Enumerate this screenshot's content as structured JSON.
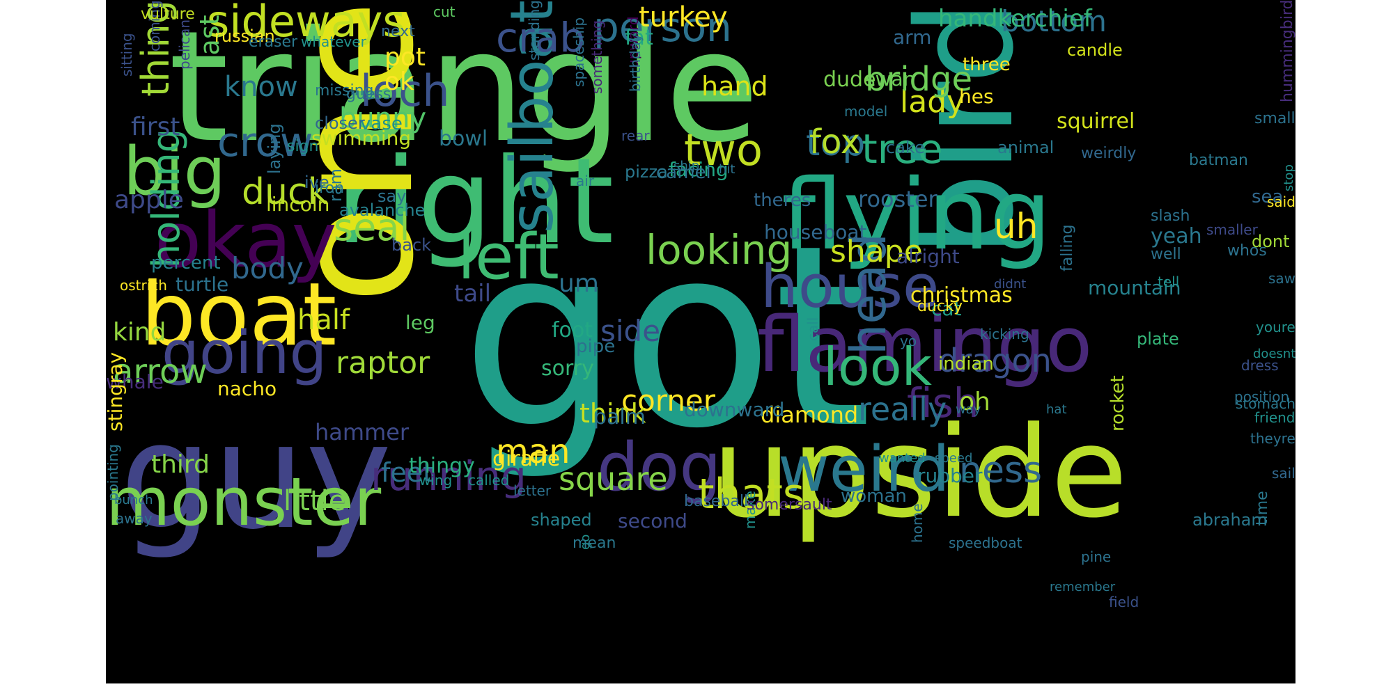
{
  "background": "#000000",
  "palette": [
    "#440154",
    "#3b528b",
    "#21918c",
    "#5ec962",
    "#fde725"
  ],
  "words": [
    {
      "text": "triangle",
      "color": "#5ec962"
    },
    {
      "text": "got",
      "color": "#1f9e89"
    },
    {
      "text": "bird",
      "color": "#1f9e89"
    },
    {
      "text": "right",
      "color": "#3fbc73"
    },
    {
      "text": "one",
      "color": "#e2e418"
    },
    {
      "text": "upside",
      "color": "#b8de29"
    },
    {
      "text": "guy",
      "color": "#414487"
    },
    {
      "text": "flying",
      "color": "#22a884"
    },
    {
      "text": "okay",
      "color": "#440154"
    },
    {
      "text": "boat",
      "color": "#fde725"
    },
    {
      "text": "flamingo",
      "color": "#482878"
    },
    {
      "text": "house",
      "color": "#3e4a89"
    },
    {
      "text": "sailboat",
      "color": "#26828e"
    },
    {
      "text": "left",
      "color": "#3fbc73"
    },
    {
      "text": "dog",
      "color": "#453781"
    },
    {
      "text": "big",
      "color": "#6ece58"
    },
    {
      "text": "monster",
      "color": "#7ad151"
    },
    {
      "text": "going",
      "color": "#414487"
    },
    {
      "text": "weird",
      "color": "#2a788e"
    },
    {
      "text": "sideways",
      "color": "#c2df23"
    },
    {
      "text": "look",
      "color": "#35b779"
    },
    {
      "text": "crab",
      "color": "#3b528b"
    },
    {
      "text": "person",
      "color": "#2c728e"
    },
    {
      "text": "loch",
      "color": "#3b528b"
    },
    {
      "text": "two",
      "color": "#c2df23"
    },
    {
      "text": "tree",
      "color": "#2ab07f"
    },
    {
      "text": "running",
      "color": "#472d7b"
    },
    {
      "text": "fish",
      "color": "#482878"
    },
    {
      "text": "thats",
      "color": "#c2df23"
    },
    {
      "text": "looking",
      "color": "#7ad151"
    },
    {
      "text": "seal",
      "color": "#86d549"
    },
    {
      "text": "duck",
      "color": "#b5de2b"
    },
    {
      "text": "head",
      "color": "#31688e"
    },
    {
      "text": "crow",
      "color": "#31688e"
    },
    {
      "text": "dragon",
      "color": "#3b528b"
    },
    {
      "text": "ness",
      "color": "#31688e"
    },
    {
      "text": "thing",
      "color": "#a2da37"
    },
    {
      "text": "man",
      "color": "#fde725"
    },
    {
      "text": "square",
      "color": "#86d549"
    },
    {
      "text": "holding",
      "color": "#35b779"
    },
    {
      "text": "corner",
      "color": "#fde725"
    },
    {
      "text": "shape",
      "color": "#cae11f"
    },
    {
      "text": "top",
      "color": "#2c728e"
    },
    {
      "text": "lady",
      "color": "#d2e21b"
    },
    {
      "text": "fox",
      "color": "#b5de2b"
    },
    {
      "text": "arrow",
      "color": "#6ece58"
    },
    {
      "text": "half",
      "color": "#c8e020"
    },
    {
      "text": "bridge",
      "color": "#6ece58"
    },
    {
      "text": "bottom",
      "color": "#2c728e"
    },
    {
      "text": "side",
      "color": "#3b528b"
    },
    {
      "text": "turkey",
      "color": "#fde725"
    },
    {
      "text": "uh",
      "color": "#fde725"
    },
    {
      "text": "body",
      "color": "#31688e"
    },
    {
      "text": "um",
      "color": "#2c728e"
    },
    {
      "text": "really",
      "color": "#2c728e"
    },
    {
      "text": "raptor",
      "color": "#a0da39"
    },
    {
      "text": "little",
      "color": "#7ad151"
    },
    {
      "text": "know",
      "color": "#2a788e"
    },
    {
      "text": "last",
      "color": "#5ec962"
    },
    {
      "text": "kind",
      "color": "#95d840"
    },
    {
      "text": "first",
      "color": "#3b528b"
    },
    {
      "text": "apple",
      "color": "#3e4a89"
    },
    {
      "text": "think",
      "color": "#c8e020"
    },
    {
      "text": "bunny",
      "color": "#52c569"
    },
    {
      "text": "hand",
      "color": "#dde318"
    },
    {
      "text": "ok",
      "color": "#fde725"
    },
    {
      "text": "pot",
      "color": "#fde725"
    },
    {
      "text": "oh",
      "color": "#a2da37"
    },
    {
      "text": "feet",
      "color": "#2c728e"
    },
    {
      "text": "third",
      "color": "#86d549"
    },
    {
      "text": "fat",
      "color": "#22a884"
    },
    {
      "text": "handkerchief",
      "color": "#35b779"
    },
    {
      "text": "cat",
      "color": "#1f9e89"
    },
    {
      "text": "christmas",
      "color": "#fde725"
    },
    {
      "text": "diamond",
      "color": "#fde725"
    },
    {
      "text": "foot",
      "color": "#22a884"
    },
    {
      "text": "tail",
      "color": "#3e4a89"
    },
    {
      "text": "hammer",
      "color": "#3e4a89"
    },
    {
      "text": "downward",
      "color": "#2c728e"
    },
    {
      "text": "alright",
      "color": "#3e4a89"
    },
    {
      "text": "theres",
      "color": "#31688e"
    },
    {
      "text": "rooster",
      "color": "#31688e"
    },
    {
      "text": "sorry",
      "color": "#35b779"
    },
    {
      "text": "nacho",
      "color": "#fde725"
    },
    {
      "text": "lincoln",
      "color": "#c2df23"
    },
    {
      "text": "whale",
      "color": "#472d7b"
    },
    {
      "text": "dude",
      "color": "#7ad151"
    },
    {
      "text": "swan",
      "color": "#6ece58"
    },
    {
      "text": "squirrel",
      "color": "#d2e21b"
    },
    {
      "text": "swimming",
      "color": "#c2df23"
    },
    {
      "text": "bowl",
      "color": "#2a788e"
    },
    {
      "text": "three",
      "color": "#fde725"
    },
    {
      "text": "hes",
      "color": "#fde725"
    },
    {
      "text": "arm",
      "color": "#31688e"
    },
    {
      "text": "yeah",
      "color": "#2a788e"
    },
    {
      "text": "mountain",
      "color": "#26828e"
    },
    {
      "text": "houseboat",
      "color": "#31688e"
    },
    {
      "text": "percent",
      "color": "#26828e"
    },
    {
      "text": "turtle",
      "color": "#2c728e"
    },
    {
      "text": "rubber",
      "color": "#26828e"
    },
    {
      "text": "abraham",
      "color": "#2a788e"
    },
    {
      "text": "stingray",
      "color": "#fde725"
    },
    {
      "text": "giraffe",
      "color": "#fde725"
    },
    {
      "text": "thingy",
      "color": "#2ab07f"
    },
    {
      "text": "rocket",
      "color": "#b5de2b"
    },
    {
      "text": "indian",
      "color": "#b5de2b"
    },
    {
      "text": "woman",
      "color": "#2c728e"
    },
    {
      "text": "second",
      "color": "#3e4a89"
    },
    {
      "text": "shaped",
      "color": "#26828e"
    },
    {
      "text": "plate",
      "color": "#35b779"
    },
    {
      "text": "palm",
      "color": "#2c728e"
    },
    {
      "text": "facing",
      "color": "#22a884"
    },
    {
      "text": "camel",
      "color": "#2c728e"
    },
    {
      "text": "pizza",
      "color": "#2a788e"
    },
    {
      "text": "sea",
      "color": "#31688e"
    },
    {
      "text": "dont",
      "color": "#a2da37"
    },
    {
      "text": "leg",
      "color": "#5ec962"
    },
    {
      "text": "pipe",
      "color": "#2c728e"
    },
    {
      "text": "avalanche",
      "color": "#26828e"
    },
    {
      "text": "back",
      "color": "#3b528b"
    },
    {
      "text": "say",
      "color": "#2c728e"
    },
    {
      "text": "ram",
      "color": "#2a788e"
    },
    {
      "text": "ive",
      "color": "#31688e"
    },
    {
      "text": "laying",
      "color": "#2c728e"
    },
    {
      "text": "iron",
      "color": "#2a788e"
    },
    {
      "text": "sign",
      "color": "#21918c"
    },
    {
      "text": "vase",
      "color": "#21918c"
    },
    {
      "text": "closer",
      "color": "#31688e"
    },
    {
      "text": "guess",
      "color": "#2c728e"
    },
    {
      "text": "missing",
      "color": "#2a788e"
    },
    {
      "text": "pelican",
      "color": "#3e4a89"
    },
    {
      "text": "sitting",
      "color": "#3b528b"
    },
    {
      "text": "coming",
      "color": "#3b528b"
    },
    {
      "text": "vulture",
      "color": "#c2df23"
    },
    {
      "text": "cut",
      "color": "#5ec962"
    },
    {
      "text": "russian",
      "color": "#fde725"
    },
    {
      "text": "next",
      "color": "#31688e"
    },
    {
      "text": "eraser",
      "color": "#2a788e"
    },
    {
      "text": "whatever",
      "color": "#21918c"
    },
    {
      "text": "candle",
      "color": "#d2e21b"
    },
    {
      "text": "small",
      "color": "#2c728e"
    },
    {
      "text": "batman",
      "color": "#2a788e"
    },
    {
      "text": "model",
      "color": "#2a788e"
    },
    {
      "text": "rear",
      "color": "#3b528b"
    },
    {
      "text": "cake",
      "color": "#2c728e"
    },
    {
      "text": "upward",
      "color": "#440154"
    },
    {
      "text": "standing",
      "color": "#2c728e"
    },
    {
      "text": "spaceship",
      "color": "#2c728e"
    },
    {
      "text": "birthday",
      "color": "#2c728e"
    },
    {
      "text": "something",
      "color": "#482878"
    },
    {
      "text": "ship",
      "color": "#2a788e"
    },
    {
      "text": "hit",
      "color": "#2c728e"
    },
    {
      "text": "air",
      "color": "#2a788e"
    },
    {
      "text": "animal",
      "color": "#2a788e"
    },
    {
      "text": "slash",
      "color": "#2c728e"
    },
    {
      "text": "smaller",
      "color": "#3e4a89"
    },
    {
      "text": "said",
      "color": "#fde725"
    },
    {
      "text": "hummingbird",
      "color": "#472d7b"
    },
    {
      "text": "weirdly",
      "color": "#31688e"
    },
    {
      "text": "whos",
      "color": "#2c728e"
    },
    {
      "text": "saw",
      "color": "#2c728e"
    },
    {
      "text": "well",
      "color": "#2c728e"
    },
    {
      "text": "youre",
      "color": "#21918c"
    },
    {
      "text": "stop",
      "color": "#21918c"
    },
    {
      "text": "call",
      "color": "#21918c"
    },
    {
      "text": "falling",
      "color": "#2c728e"
    },
    {
      "text": "ducky",
      "color": "#fde725"
    },
    {
      "text": "tell",
      "color": "#21918c"
    },
    {
      "text": "ostrich",
      "color": "#fde725"
    },
    {
      "text": "kicking",
      "color": "#2c728e"
    },
    {
      "text": "yo",
      "color": "#2c728e"
    },
    {
      "text": "didnt",
      "color": "#3b528b"
    },
    {
      "text": "dress",
      "color": "#3b528b"
    },
    {
      "text": "doesnt",
      "color": "#21918c"
    },
    {
      "text": "friend",
      "color": "#21918c"
    },
    {
      "text": "wanted",
      "color": "#21918c"
    },
    {
      "text": "speed",
      "color": "#2a788e"
    },
    {
      "text": "way",
      "color": "#2c728e"
    },
    {
      "text": "hat",
      "color": "#2a788e"
    },
    {
      "text": "theyre",
      "color": "#2c728e"
    },
    {
      "text": "speedboat",
      "color": "#2c728e"
    },
    {
      "text": "make",
      "color": "#21918c"
    },
    {
      "text": "somersault",
      "color": "#482878"
    },
    {
      "text": "sail",
      "color": "#31688e"
    },
    {
      "text": "baseball",
      "color": "#31688e"
    },
    {
      "text": "go",
      "color": "#21918c"
    },
    {
      "text": "mean",
      "color": "#2a788e"
    },
    {
      "text": "letter",
      "color": "#2c728e"
    },
    {
      "text": "wing",
      "color": "#21918c"
    },
    {
      "text": "called",
      "color": "#21918c"
    },
    {
      "text": "pointing",
      "color": "#2a788e"
    },
    {
      "text": "bunch",
      "color": "#2a788e"
    },
    {
      "text": "away",
      "color": "#2c728e"
    },
    {
      "text": "home",
      "color": "#2c728e"
    },
    {
      "text": "pine",
      "color": "#2c728e"
    },
    {
      "text": "remember",
      "color": "#2a788e"
    },
    {
      "text": "field",
      "color": "#3b528b"
    },
    {
      "text": "time",
      "color": "#2a788e"
    },
    {
      "text": "position",
      "color": "#2c728e"
    },
    {
      "text": "stomach",
      "color": "#2a788e"
    }
  ]
}
